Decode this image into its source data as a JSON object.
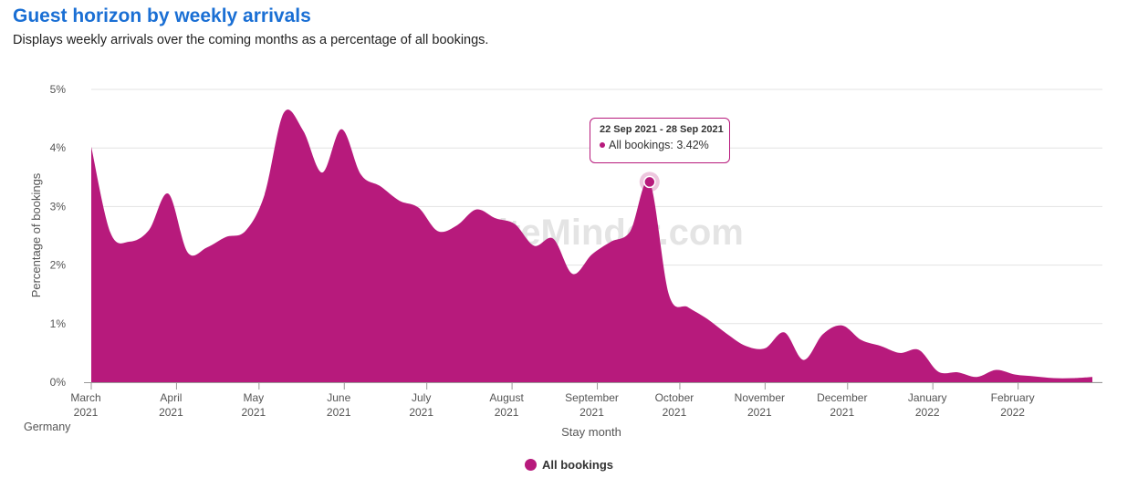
{
  "header": {
    "title": "Guest horizon by weekly arrivals",
    "subtitle": "Displays weekly arrivals over the coming months as a percentage of all bookings."
  },
  "footer": {
    "country": "Germany"
  },
  "watermark": "SiteMinder.com",
  "tooltip": {
    "date": "22 Sep 2021 - 28 Sep 2021",
    "label": "All bookings: 3.42%"
  },
  "legend": {
    "label": "All bookings"
  },
  "colors": {
    "series": "#b71a7c",
    "title": "#1a6fd4"
  },
  "chart_data": {
    "type": "area",
    "title": "Guest horizon by weekly arrivals",
    "xlabel": "Stay month",
    "ylabel": "Percentage of bookings",
    "ylim": [
      0,
      5
    ],
    "yticks": [
      "0%",
      "1%",
      "2%",
      "3%",
      "4%",
      "5%"
    ],
    "xticks": [
      {
        "month": "March",
        "year": "2021"
      },
      {
        "month": "April",
        "year": "2021"
      },
      {
        "month": "May",
        "year": "2021"
      },
      {
        "month": "June",
        "year": "2021"
      },
      {
        "month": "July",
        "year": "2021"
      },
      {
        "month": "August",
        "year": "2021"
      },
      {
        "month": "September",
        "year": "2021"
      },
      {
        "month": "October",
        "year": "2021"
      },
      {
        "month": "November",
        "year": "2021"
      },
      {
        "month": "December",
        "year": "2021"
      },
      {
        "month": "January",
        "year": "2022"
      },
      {
        "month": "February",
        "year": "2022"
      }
    ],
    "grid": true,
    "legend_position": "bottom-center",
    "series": [
      {
        "name": "All bookings",
        "color": "#b71a7c",
        "x": [
          "2021-03-01",
          "2021-03-08",
          "2021-03-15",
          "2021-03-22",
          "2021-03-29",
          "2021-04-05",
          "2021-04-12",
          "2021-04-19",
          "2021-04-26",
          "2021-05-03",
          "2021-05-10",
          "2021-05-17",
          "2021-05-24",
          "2021-05-31",
          "2021-06-07",
          "2021-06-14",
          "2021-06-21",
          "2021-06-28",
          "2021-07-05",
          "2021-07-12",
          "2021-07-19",
          "2021-07-26",
          "2021-08-02",
          "2021-08-09",
          "2021-08-16",
          "2021-08-23",
          "2021-08-30",
          "2021-09-06",
          "2021-09-13",
          "2021-09-20",
          "2021-09-27",
          "2021-10-04",
          "2021-10-11",
          "2021-10-18",
          "2021-10-25",
          "2021-11-01",
          "2021-11-08",
          "2021-11-15",
          "2021-11-22",
          "2021-11-29",
          "2021-12-06",
          "2021-12-13",
          "2021-12-20",
          "2021-12-27",
          "2022-01-03",
          "2022-01-10",
          "2022-01-17",
          "2022-01-24",
          "2022-01-31",
          "2022-02-07",
          "2022-02-14",
          "2022-02-21",
          "2022-02-28"
        ],
        "values": [
          4.02,
          2.55,
          2.4,
          2.6,
          3.22,
          2.22,
          2.3,
          2.48,
          2.58,
          3.2,
          4.6,
          4.3,
          3.58,
          4.32,
          3.55,
          3.35,
          3.1,
          2.98,
          2.58,
          2.68,
          2.95,
          2.8,
          2.7,
          2.33,
          2.45,
          1.85,
          2.18,
          2.4,
          2.58,
          3.42,
          1.5,
          1.28,
          1.08,
          0.83,
          0.62,
          0.58,
          0.85,
          0.38,
          0.82,
          0.97,
          0.72,
          0.62,
          0.5,
          0.55,
          0.18,
          0.17,
          0.09,
          0.21,
          0.13,
          0.1,
          0.07,
          0.07,
          0.09
        ]
      }
    ],
    "highlight": {
      "x": "2021-09-20",
      "value": 3.42
    }
  }
}
